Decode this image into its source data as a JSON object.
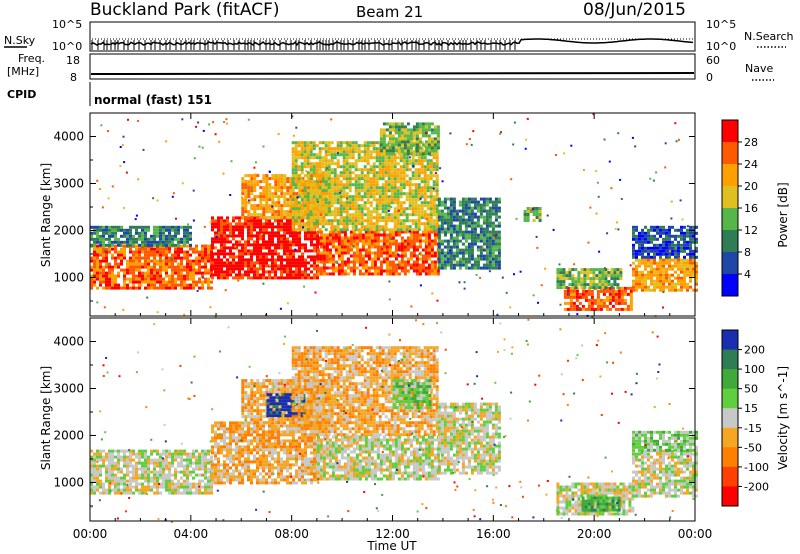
{
  "header": {
    "station": "Buckland Park (fitACF)",
    "beam": "Beam 21",
    "date": "08/Jun/2015"
  },
  "strips": {
    "nsky_label": "N.Sky",
    "nsearch_label": "N.Search",
    "nsky_ticks": [
      "10^5",
      "10^0"
    ],
    "nsearch_ticks": [
      "10^5",
      "10^0"
    ],
    "freq_label": "Freq.",
    "freq_unit": "[MHz]",
    "freq_ticks": [
      "18",
      "8"
    ],
    "nave_label": "Nave",
    "nave_ticks": [
      "60",
      "0"
    ],
    "cpid_label": "CPID",
    "cpid_value": "normal (fast) 151"
  },
  "chart_data": [
    {
      "type": "heatmap",
      "panel": "power",
      "ylabel": "Slant Range [km]",
      "yticks": [
        1000,
        2000,
        3000,
        4000
      ],
      "ylim": [
        180,
        4500
      ],
      "x_ticks": [
        "00:00",
        "04:00",
        "08:00",
        "12:00",
        "16:00",
        "20:00",
        "00:00"
      ],
      "xlim_hours": [
        0,
        24
      ],
      "colorbar": {
        "label": "Power [dB]",
        "ticks": [
          "28",
          "24",
          "20",
          "16",
          "12",
          "8",
          "4"
        ],
        "levels": [
          {
            "min": 0,
            "color": "#0000ff"
          },
          {
            "min": 4,
            "color": "#1f47a8"
          },
          {
            "min": 8,
            "color": "#2e7d55"
          },
          {
            "min": 12,
            "color": "#57b64a"
          },
          {
            "min": 16,
            "color": "#e0c020"
          },
          {
            "min": 20,
            "color": "#ff9f00"
          },
          {
            "min": 24,
            "color": "#ff5a00"
          },
          {
            "min": 28,
            "color": "#ff0000"
          }
        ]
      },
      "regions": [
        {
          "t0": 0.0,
          "t1": 4.8,
          "r0": 800,
          "r1": 1700,
          "level": 6
        },
        {
          "t0": 0.0,
          "t1": 4.0,
          "r0": 1700,
          "r1": 2100,
          "level": 2
        },
        {
          "t0": 4.8,
          "t1": 9.0,
          "r0": 1000,
          "r1": 2300,
          "level": 7
        },
        {
          "t0": 6.0,
          "t1": 9.5,
          "r0": 2300,
          "r1": 3200,
          "level": 5
        },
        {
          "t0": 9.0,
          "t1": 13.8,
          "r0": 1100,
          "r1": 2000,
          "level": 6
        },
        {
          "t0": 8.0,
          "t1": 13.8,
          "r0": 2000,
          "r1": 3900,
          "level": 4
        },
        {
          "t0": 11.5,
          "t1": 13.8,
          "r0": 3600,
          "r1": 4300,
          "level": 3
        },
        {
          "t0": 13.8,
          "t1": 16.2,
          "r0": 1200,
          "r1": 2700,
          "level": 2
        },
        {
          "t0": 17.2,
          "t1": 17.8,
          "r0": 2200,
          "r1": 2500,
          "level": 3
        },
        {
          "t0": 18.8,
          "t1": 21.5,
          "r0": 300,
          "r1": 800,
          "level": 6
        },
        {
          "t0": 18.5,
          "t1": 21.0,
          "r0": 800,
          "r1": 1200,
          "level": 3
        },
        {
          "t0": 21.5,
          "t1": 24.0,
          "r0": 700,
          "r1": 1400,
          "level": 5
        },
        {
          "t0": 21.5,
          "t1": 24.0,
          "r0": 1400,
          "r1": 2100,
          "level": 1
        }
      ]
    },
    {
      "type": "heatmap",
      "panel": "velocity",
      "ylabel": "Slant Range [km]",
      "yticks": [
        1000,
        2000,
        3000,
        4000
      ],
      "ylim": [
        180,
        4500
      ],
      "x_ticks": [
        "00:00",
        "04:00",
        "08:00",
        "12:00",
        "16:00",
        "20:00",
        "00:00"
      ],
      "xlim_hours": [
        0,
        24
      ],
      "xlabel": "Time UT",
      "colorbar": {
        "label": "Velocity [m s^-1]",
        "ticks": [
          "200",
          "100",
          "50",
          "15",
          "-15",
          "-50",
          "-100",
          "-200"
        ],
        "levels": [
          {
            "min": 200,
            "color": "#1a2fb0"
          },
          {
            "min": 100,
            "color": "#2e7d55"
          },
          {
            "min": 50,
            "color": "#3fa93a"
          },
          {
            "min": 15,
            "color": "#5fcf40"
          },
          {
            "min": -15,
            "color": "#c8c8c8"
          },
          {
            "min": -50,
            "color": "#f5a623"
          },
          {
            "min": -100,
            "color": "#ff7f00"
          },
          {
            "min": -200,
            "color": "#ff4000"
          },
          {
            "min": -999,
            "color": "#ff0000"
          }
        ]
      },
      "regions": [
        {
          "t0": 0.0,
          "t1": 4.8,
          "r0": 800,
          "r1": 1700,
          "level": 4
        },
        {
          "t0": 4.8,
          "t1": 9.0,
          "r0": 1000,
          "r1": 2300,
          "level": 5
        },
        {
          "t0": 6.0,
          "t1": 9.5,
          "r0": 2300,
          "r1": 3200,
          "level": 5
        },
        {
          "t0": 7.0,
          "t1": 8.5,
          "r0": 2400,
          "r1": 2900,
          "level": 0
        },
        {
          "t0": 9.0,
          "t1": 13.8,
          "r0": 1100,
          "r1": 2000,
          "level": 4
        },
        {
          "t0": 8.0,
          "t1": 13.8,
          "r0": 2000,
          "r1": 3900,
          "level": 5
        },
        {
          "t0": 12.0,
          "t1": 13.5,
          "r0": 2600,
          "r1": 3200,
          "level": 3
        },
        {
          "t0": 13.8,
          "t1": 16.2,
          "r0": 1200,
          "r1": 2700,
          "level": 4
        },
        {
          "t0": 18.5,
          "t1": 21.5,
          "r0": 300,
          "r1": 1000,
          "level": 4
        },
        {
          "t0": 19.5,
          "t1": 21.0,
          "r0": 400,
          "r1": 700,
          "level": 2
        },
        {
          "t0": 21.5,
          "t1": 24.0,
          "r0": 700,
          "r1": 1700,
          "level": 4
        },
        {
          "t0": 21.5,
          "t1": 24.0,
          "r0": 1700,
          "r1": 2100,
          "level": 3
        }
      ]
    }
  ]
}
